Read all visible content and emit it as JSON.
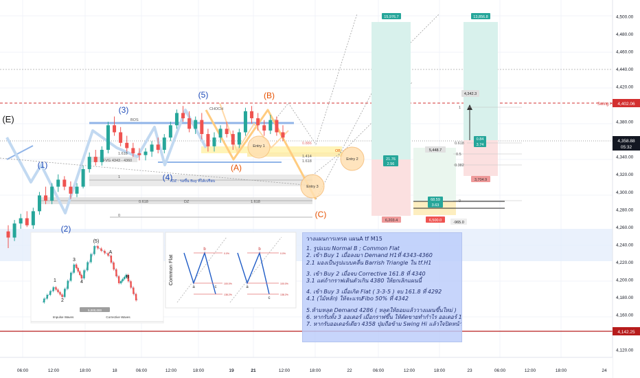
{
  "price_scale": {
    "ticks": [
      "4,500.00",
      "4,480.00",
      "4,460.00",
      "4,440.00",
      "4,420.00",
      "4,400.00",
      "4,380.00",
      "4,360.00",
      "4,340.00",
      "4,320.00",
      "4,300.00",
      "4,280.00",
      "4,260.00",
      "4,240.00",
      "4,220.00",
      "4,200.00",
      "4,180.00",
      "4,160.00",
      "4,140.00",
      "4,120.00"
    ],
    "tick_values": [
      4500,
      4480,
      4460,
      4440,
      4420,
      4400,
      4380,
      4360,
      4340,
      4320,
      4300,
      4280,
      4260,
      4240,
      4220,
      4200,
      4180,
      4160,
      4140,
      4120
    ],
    "current_price": "4,358.88",
    "countdown": "05:32",
    "swing_hi_label": "Swing Hi",
    "swing_hi_price": "4,402.06",
    "support_price": "4,142.25",
    "colors": {
      "up": "#26a69a",
      "down": "#ef5350",
      "swing_hi": "#d32f2f",
      "support": "#b71c1c",
      "current": "#333333"
    }
  },
  "time_axis": {
    "labels": [
      "06:00",
      "12:00",
      "18:00",
      "18",
      "06:00",
      "12:00",
      "18:00",
      "19",
      "06:00",
      "21",
      "12:00",
      "18:00",
      "22",
      "06:00",
      "12:00",
      "18:00",
      "23",
      "06:00",
      "12:00",
      "18:00",
      "24"
    ]
  },
  "wave_labels": {
    "E": "(E)",
    "w1": "(1)",
    "w2": "(2)",
    "w3": "(3)",
    "w4": "(4)",
    "w5": "(5)",
    "A": "(A)",
    "B": "(B)",
    "C": "(C)"
  },
  "annotations": {
    "bos": "BOS",
    "choch": "CHOCH",
    "fvg": "FVG 4343 - 4360",
    "dz_buy": "DZ : รอขึ้น Buy ที่ได้เปรียบ",
    "dz": "DZ",
    "ob": "OB",
    "fib_0618": "0.618",
    "fib_1": "1",
    "fib_0": "0",
    "fib_1618": "1.618",
    "fib_1618b": "1.618",
    "fib_1414": "1.414",
    "fib_0886": "0.886",
    "fib_1618c": "1.618",
    "fib_0618_right": "0.618",
    "fib_05_right": "0.5",
    "fib_0382_right": "0.382",
    "fib_1_right": "1",
    "fib_0_right": "0",
    "entry1": "Entry 1",
    "entry2": "Entry 2",
    "entry3": "Entry 3"
  },
  "positions": {
    "pos1_target": "15,976.7",
    "pos1_ratio_a": "21.76",
    "pos1_ratio_b": "2.56",
    "pos1_stop": "6,203.4",
    "pos2_target": "5,448.7",
    "pos2_ratio_a": "68.59",
    "pos2_ratio_b": "3.63",
    "pos2_stop": "6,500.0",
    "pos2_extra": "-965.0",
    "pos3_target": "13,856.8",
    "pos3_mid": "4,342.3",
    "pos3_ratio_a": "0.84",
    "pos3_ratio_b": "3.74",
    "pos3_stop": "3,704.9"
  },
  "diagram_impulse": {
    "labels": [
      "(5)",
      "3",
      "1",
      "2",
      "4",
      "A",
      "B"
    ],
    "caption_left": "Impulse Waves",
    "caption_mid": "Corrective Waves",
    "badge": "5,000,000"
  },
  "diagram_flat": {
    "title": "Common Flat",
    "labels": [
      "b",
      "a",
      "c",
      "b",
      "a",
      "c"
    ],
    "fib_labels": [
      "0.0%",
      "100.0%",
      "138.2%",
      "0.0%",
      "100.0%",
      "138.2%"
    ]
  },
  "plan": {
    "title": "วางแผนการเทรด แผนA tf M15",
    "lines": [
      "1. รูปแบบ Normal B ; Common Flat",
      "2. เข้า Buy 1 เมื่อลงมา  Demand H1ที่ 4343-4360",
      "2.1 มองเป็นรูปแบบคลื่น Barrish Triangle ใน tf.H1",
      "",
      "3. เข้า Buy 2 เมื่อจบ Corrective 161.8 ที่ 4340",
      "3.1 แต่ถ้ากราฟเดินตัวเกิน 4380 ให้ยกเลิกแผนนี้",
      "",
      "4. เข้า Buy 3 เมื่อเกิด Flat ( 3-3-5 ) จบ 161.8 ที่ 4292",
      "4.1 (ไม้หลัก) ให้จะแรปFibo 50% ที่ 4342",
      "",
      "5.ห้ามหลุด Demand 4286 ( หลุดให้ยอมแล้ววางแผนขึ้นใหม่ )",
      "6. หากรับทั้ง 3 ออเดอร์ เมื่อกราฟขึ้น ให้ตัดขายทำกำไร ออเดอร์ 1 ทันทีที่ 4397",
      "7. หากรับออเดอร์เดียว 4358 ปุ่มถือข้าม Swing Hi แล้วใจปิดหน้าทุนทันที"
    ]
  },
  "chart_data": {
    "type": "candlestick",
    "instrument_scale": "price",
    "ylim": [
      4110,
      4520
    ],
    "y_ticks": [
      4500,
      4480,
      4460,
      4440,
      4420,
      4400,
      4380,
      4360,
      4340,
      4320,
      4300,
      4280,
      4260,
      4240,
      4220,
      4200,
      4180,
      4160,
      4140,
      4120
    ],
    "levels": {
      "swing_hi": 4402.06,
      "current": 4358.88,
      "support": 4142.25
    },
    "candles": [
      [
        4255,
        4262,
        4236,
        4248
      ],
      [
        4248,
        4268,
        4244,
        4264
      ],
      [
        4264,
        4275,
        4258,
        4270
      ],
      [
        4270,
        4278,
        4260,
        4262
      ],
      [
        4262,
        4282,
        4258,
        4278
      ],
      [
        4278,
        4300,
        4274,
        4296
      ],
      [
        4296,
        4306,
        4286,
        4290
      ],
      [
        4290,
        4310,
        4286,
        4306
      ],
      [
        4306,
        4320,
        4300,
        4314
      ],
      [
        4314,
        4318,
        4302,
        4306
      ],
      [
        4306,
        4312,
        4292,
        4298
      ],
      [
        4298,
        4310,
        4294,
        4306
      ],
      [
        4306,
        4330,
        4304,
        4326
      ],
      [
        4326,
        4345,
        4322,
        4340
      ],
      [
        4340,
        4348,
        4330,
        4334
      ],
      [
        4334,
        4352,
        4330,
        4348
      ],
      [
        4348,
        4380,
        4344,
        4376
      ],
      [
        4376,
        4386,
        4364,
        4368
      ],
      [
        4368,
        4374,
        4352,
        4356
      ],
      [
        4356,
        4364,
        4346,
        4350
      ],
      [
        4350,
        4356,
        4340,
        4344
      ],
      [
        4344,
        4350,
        4336,
        4342
      ],
      [
        4342,
        4350,
        4336,
        4346
      ],
      [
        4346,
        4358,
        4340,
        4354
      ],
      [
        4354,
        4362,
        4344,
        4348
      ],
      [
        4348,
        4366,
        4344,
        4362
      ],
      [
        4362,
        4380,
        4358,
        4376
      ],
      [
        4376,
        4394,
        4372,
        4390
      ],
      [
        4390,
        4398,
        4380,
        4384
      ],
      [
        4384,
        4392,
        4368,
        4372
      ],
      [
        4372,
        4386,
        4366,
        4382
      ],
      [
        4382,
        4390,
        4360,
        4366
      ],
      [
        4366,
        4372,
        4346,
        4352
      ],
      [
        4352,
        4368,
        4346,
        4362
      ],
      [
        4362,
        4376,
        4356,
        4372
      ],
      [
        4372,
        4380,
        4362,
        4366
      ],
      [
        4366,
        4370,
        4348,
        4354
      ],
      [
        4354,
        4372,
        4350,
        4368
      ],
      [
        4368,
        4396,
        4364,
        4392
      ],
      [
        4392,
        4398,
        4378,
        4384
      ],
      [
        4384,
        4390,
        4370,
        4376
      ],
      [
        4376,
        4382,
        4364,
        4370
      ],
      [
        4370,
        4388,
        4366,
        4382
      ],
      [
        4382,
        4386,
        4364,
        4368
      ],
      [
        4368,
        4376,
        4358,
        4362
      ]
    ]
  }
}
